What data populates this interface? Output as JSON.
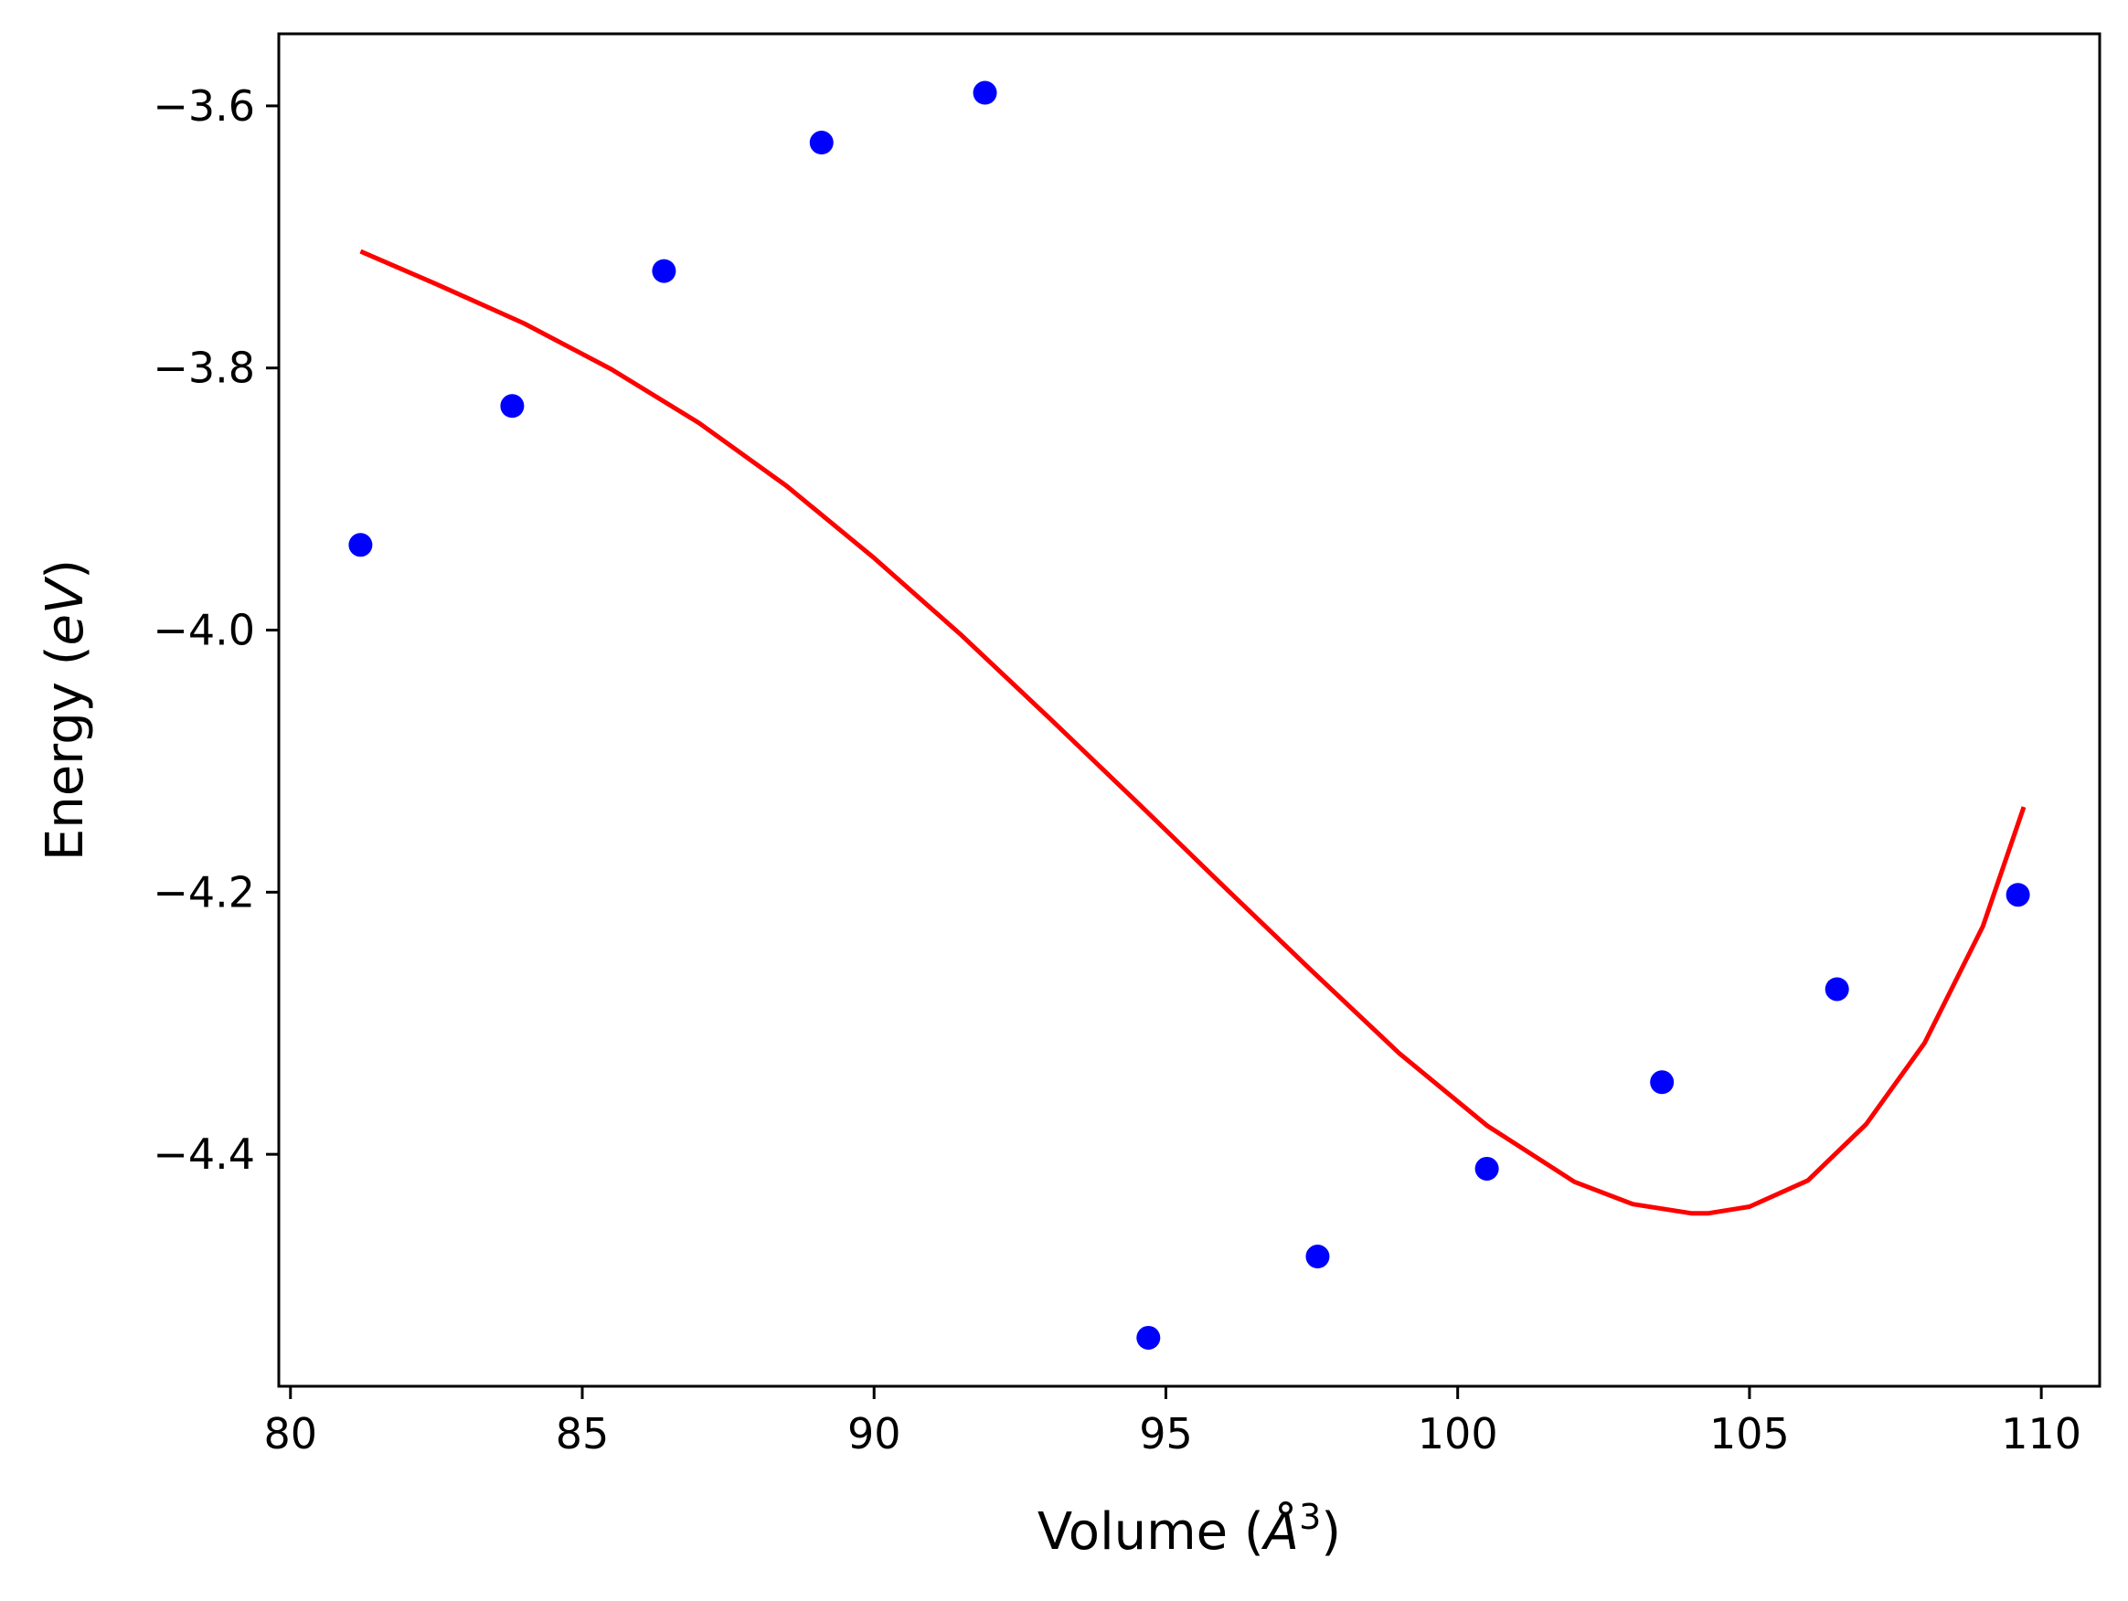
{
  "chart_data": {
    "type": "scatter",
    "xlabel": "Volume (",
    "xlabel_symbol": "Å",
    "xlabel_exponent": "3",
    "xlabel_close": ")",
    "ylabel": "Energy (",
    "ylabel_italic": "eV",
    "ylabel_close": ")",
    "xlim": [
      79.8,
      111.0
    ],
    "ylim": [
      -4.577,
      -3.545
    ],
    "xticks": [
      80,
      85,
      90,
      95,
      100,
      105,
      110
    ],
    "xtick_labels": [
      "80",
      "85",
      "90",
      "95",
      "100",
      "105",
      "110"
    ],
    "yticks": [
      -3.6,
      -3.8,
      -4.0,
      -4.2,
      -4.4
    ],
    "ytick_labels": [
      "−3.6",
      "−3.8",
      "−4.0",
      "−4.2",
      "−4.4"
    ],
    "grid": false,
    "series": [
      {
        "kind": "points",
        "color": "#0000ff",
        "x": [
          81.2,
          83.8,
          86.4,
          89.1,
          91.9,
          94.7,
          97.6,
          100.5,
          103.5,
          106.5,
          109.6
        ],
        "y": [
          -3.935,
          -3.829,
          -3.726,
          -3.628,
          -3.59,
          -4.54,
          -4.478,
          -4.411,
          -4.345,
          -4.274,
          -4.202
        ]
      },
      {
        "kind": "line",
        "color": "#ff0000",
        "x": [
          81.2,
          82.5,
          84.0,
          85.5,
          87.0,
          88.5,
          90.0,
          91.5,
          93.0,
          94.5,
          96.0,
          97.5,
          99.0,
          100.5,
          102.0,
          103.0,
          104.0,
          104.3,
          105.0,
          106.0,
          107.0,
          108.0,
          109.0,
          109.7
        ],
        "y": [
          -3.711,
          -3.736,
          -3.766,
          -3.801,
          -3.842,
          -3.89,
          -3.945,
          -4.004,
          -4.067,
          -4.131,
          -4.196,
          -4.26,
          -4.323,
          -4.378,
          -4.421,
          -4.438,
          -4.445,
          -4.445,
          -4.44,
          -4.42,
          -4.377,
          -4.315,
          -4.226,
          -4.135
        ]
      }
    ]
  }
}
